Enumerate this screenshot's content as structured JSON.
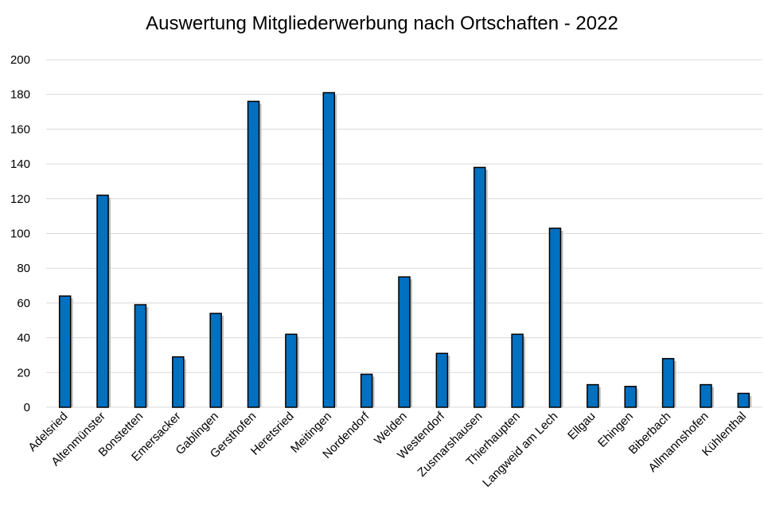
{
  "chart_data": {
    "type": "bar",
    "title": "Auswertung Mitgliederwerbung nach Ortschaften - 2022",
    "xlabel": "",
    "ylabel": "",
    "ylim": [
      0,
      200
    ],
    "yticks": [
      0,
      20,
      40,
      60,
      80,
      100,
      120,
      140,
      160,
      180,
      200
    ],
    "grid": true,
    "categories": [
      "Adelsried",
      "Altenmünster",
      "Bonstetten",
      "Emersacker",
      "Gablingen",
      "Gersthofen",
      "Heretsried",
      "Meitingen",
      "Nordendorf",
      "Welden",
      "Westendorf",
      "Zusmarshausen",
      "Thierhaupten",
      "Langweid am Lech",
      "Ellgau",
      "Ehingen",
      "Biberbach",
      "Allmannshofen",
      "Kühlenthal"
    ],
    "series": [
      {
        "values": [
          64,
          122,
          59,
          29,
          54,
          176,
          42,
          181,
          19,
          75,
          31,
          138,
          42,
          103,
          13,
          12,
          28,
          13,
          8
        ]
      }
    ],
    "color": "#0070c0"
  }
}
